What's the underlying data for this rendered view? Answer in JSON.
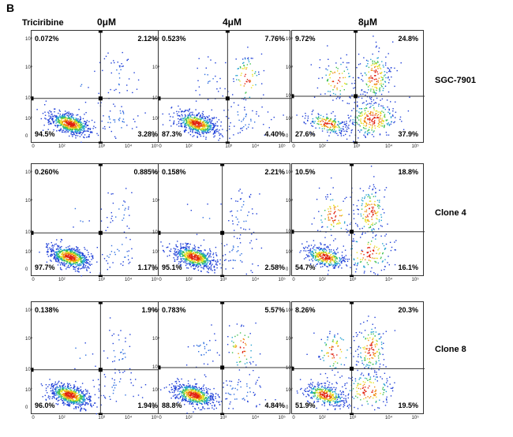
{
  "panel_letter": "B",
  "treatment_label": "Triciribine",
  "columns": [
    "0μM",
    "4μM",
    "8μM"
  ],
  "rows": [
    "SGC-7901",
    "Clone 4",
    "Clone 8"
  ],
  "chart_data": {
    "type": "scatter",
    "subtype": "flow-cytometry-quadrant-density",
    "axis_scale": "log",
    "y_tick_labels": [
      "0",
      "10²",
      "10³",
      "10⁴",
      "10⁵"
    ],
    "x_tick_labels": [
      "0",
      "10²",
      "10³",
      "10⁴",
      "10⁵"
    ],
    "quadrant_order": [
      "upper-left",
      "upper-right",
      "lower-left",
      "lower-right"
    ],
    "panels": [
      {
        "row": "SGC-7901",
        "column": "0μM",
        "ul": "0.072%",
        "ur": "2.12%",
        "ll": "94.5%",
        "lr": "3.28%"
      },
      {
        "row": "SGC-7901",
        "column": "4μM",
        "ul": "0.523%",
        "ur": "7.76%",
        "ll": "87.3%",
        "lr": "4.40%"
      },
      {
        "row": "SGC-7901",
        "column": "8μM",
        "ul": "9.72%",
        "ur": "24.8%",
        "ll": "27.6%",
        "lr": "37.9%"
      },
      {
        "row": "Clone 4",
        "column": "0μM",
        "ul": "0.260%",
        "ur": "0.885%",
        "ll": "97.7%",
        "lr": "1.17%"
      },
      {
        "row": "Clone 4",
        "column": "4μM",
        "ul": "0.158%",
        "ur": "2.21%",
        "ll": "95.1%",
        "lr": "2.58%"
      },
      {
        "row": "Clone 4",
        "column": "8μM",
        "ul": "10.5%",
        "ur": "18.8%",
        "ll": "54.7%",
        "lr": "16.1%"
      },
      {
        "row": "Clone 8",
        "column": "0μM",
        "ul": "0.138%",
        "ur": "1.9%",
        "ll": "96.0%",
        "lr": "1.94%"
      },
      {
        "row": "Clone 8",
        "column": "4μM",
        "ul": "0.783%",
        "ur": "5.57%",
        "ll": "88.8%",
        "lr": "4.84%"
      },
      {
        "row": "Clone 8",
        "column": "8μM",
        "ul": "8.26%",
        "ur": "20.3%",
        "ll": "51.9%",
        "lr": "19.5%"
      }
    ]
  }
}
